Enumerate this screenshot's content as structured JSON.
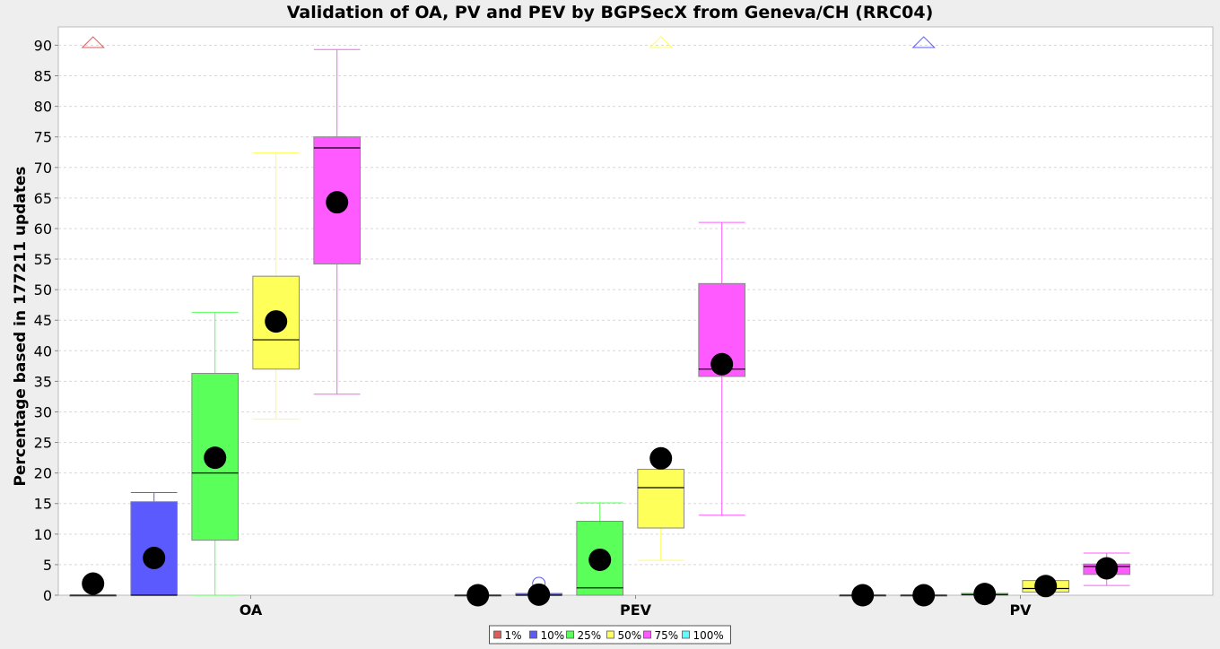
{
  "chart_data": {
    "type": "box",
    "title": "Validation of OA, PV and PEV by BGPSecX from Geneva/CH (RRC04)",
    "xlabel": "",
    "ylabel": "Percentage based in 177211 updates",
    "ylim": [
      0,
      93
    ],
    "yticks": [
      0,
      5,
      10,
      15,
      20,
      25,
      30,
      35,
      40,
      45,
      50,
      55,
      60,
      65,
      70,
      75,
      80,
      85,
      90
    ],
    "grid": true,
    "legend_position": "bottom-center",
    "categories": [
      "OA",
      "PEV",
      "PV"
    ],
    "series": [
      {
        "name": "1%",
        "color": "#e05a5a",
        "boxes": [
          {
            "min": 0,
            "q1": 0,
            "median": 0,
            "q3": 0,
            "max": 0,
            "mean": 1.9,
            "outliers": [],
            "far_outliers": [
              90.5
            ]
          },
          {
            "min": 0,
            "q1": 0,
            "median": 0,
            "q3": 0,
            "max": 0,
            "mean": 0,
            "outliers": [],
            "far_outliers": []
          },
          {
            "min": 0,
            "q1": 0,
            "median": 0,
            "q3": 0,
            "max": 0,
            "mean": 0,
            "outliers": [],
            "far_outliers": []
          }
        ]
      },
      {
        "name": "10%",
        "color": "#5a5aff",
        "boxes": [
          {
            "min": 0,
            "q1": 0,
            "median": 0,
            "q3": 15.3,
            "max": 16.8,
            "mean": 6.1,
            "outliers": [],
            "far_outliers": []
          },
          {
            "min": 0,
            "q1": 0,
            "median": 0,
            "q3": 0.3,
            "max": 0.3,
            "mean": 0.1,
            "outliers": [
              1.9
            ],
            "far_outliers": []
          },
          {
            "min": 0,
            "q1": 0,
            "median": 0,
            "q3": 0,
            "max": 0,
            "mean": 0,
            "outliers": [],
            "far_outliers": [
              90.5
            ]
          }
        ]
      },
      {
        "name": "25%",
        "color": "#5aff5a",
        "boxes": [
          {
            "min": 0,
            "q1": 9.0,
            "median": 20.0,
            "q3": 36.3,
            "max": 46.3,
            "mean": 22.5,
            "outliers": [],
            "far_outliers": []
          },
          {
            "min": 0,
            "q1": 0,
            "median": 1.2,
            "q3": 12.1,
            "max": 15.1,
            "mean": 5.8,
            "outliers": [],
            "far_outliers": []
          },
          {
            "min": 0,
            "q1": 0,
            "median": 0.1,
            "q3": 0.3,
            "max": 0.3,
            "mean": 0.2,
            "outliers": [],
            "far_outliers": []
          }
        ]
      },
      {
        "name": "50%",
        "color": "#ffff5a",
        "boxes": [
          {
            "min": 28.8,
            "q1": 37.0,
            "median": 41.8,
            "q3": 52.2,
            "max": 72.4,
            "mean": 44.8,
            "outliers": [],
            "far_outliers": []
          },
          {
            "min": 5.7,
            "q1": 11.0,
            "median": 17.6,
            "q3": 20.6,
            "max": 20.6,
            "mean": 22.4,
            "outliers": [],
            "far_outliers": [
              90.5
            ]
          },
          {
            "min": 0.5,
            "q1": 0.5,
            "median": 1.1,
            "q3": 2.4,
            "max": 2.4,
            "mean": 1.5,
            "outliers": [],
            "far_outliers": []
          }
        ]
      },
      {
        "name": "75%",
        "color": "#ff5aff",
        "boxes": [
          {
            "min": 32.9,
            "q1": 54.2,
            "median": 73.2,
            "q3": 75.0,
            "max": 89.3,
            "mean": 64.3,
            "outliers": [],
            "far_outliers": []
          },
          {
            "min": 13.1,
            "q1": 35.8,
            "median": 37.0,
            "q3": 51.0,
            "max": 61.0,
            "mean": 37.8,
            "outliers": [],
            "far_outliers": []
          },
          {
            "min": 1.6,
            "q1": 3.4,
            "median": 4.7,
            "q3": 5.1,
            "max": 6.9,
            "mean": 4.4,
            "outliers": [],
            "far_outliers": []
          }
        ]
      },
      {
        "name": "100%",
        "color": "#5affff",
        "boxes": [
          null,
          null,
          null
        ]
      }
    ]
  }
}
